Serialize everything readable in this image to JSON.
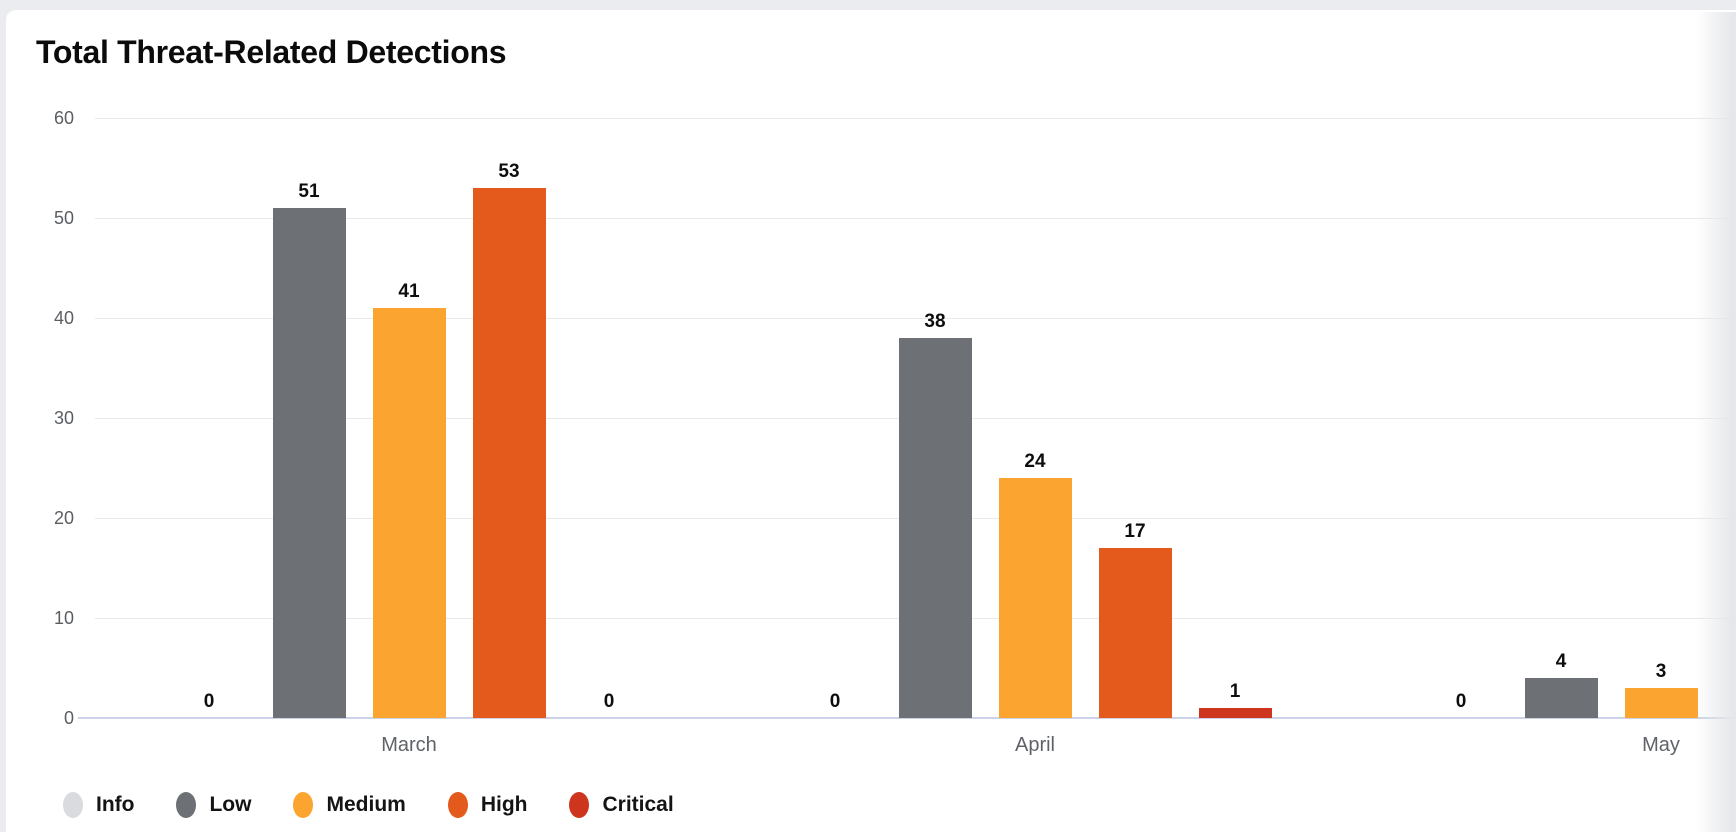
{
  "page": {
    "background_color": "#eaecef",
    "card_background_color": "#ffffff"
  },
  "header": {
    "title": "Total Threat-Related Detections"
  },
  "chart_data": {
    "type": "bar",
    "title": "Total Threat-Related Detections",
    "categories": [
      "March",
      "April",
      "May"
    ],
    "series": [
      {
        "name": "Info",
        "color": "#d9dbde",
        "values": [
          0,
          0,
          0
        ]
      },
      {
        "name": "Low",
        "color": "#6d7075",
        "values": [
          51,
          38,
          4
        ]
      },
      {
        "name": "Medium",
        "color": "#fba42f",
        "values": [
          41,
          24,
          3
        ]
      },
      {
        "name": "High",
        "color": "#e45a1d",
        "values": [
          53,
          17,
          null
        ]
      },
      {
        "name": "Critical",
        "color": "#cd351f",
        "values": [
          0,
          1,
          null
        ]
      }
    ],
    "ylim": [
      0,
      60
    ],
    "yticks": [
      0,
      10,
      20,
      30,
      40,
      50,
      60
    ],
    "xlabel": "",
    "ylabel": "",
    "grid": true,
    "value_labels": true,
    "baseline_color": "#ccd3e8",
    "legend": {
      "position": "bottom",
      "items": [
        "Info",
        "Low",
        "Medium",
        "High",
        "Critical"
      ]
    },
    "clipping_note": "May group High and Critical bars fall beyond the right edge of the visible area"
  }
}
